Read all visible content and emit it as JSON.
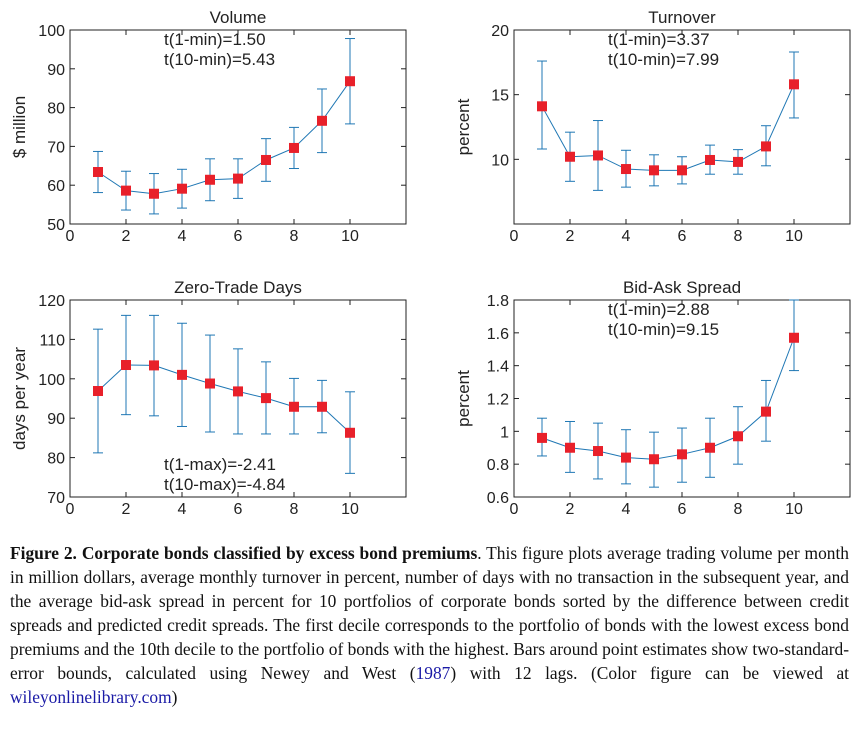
{
  "colors": {
    "line": "#1f77b4",
    "marker": "#e8202a",
    "axis": "#222222",
    "link": "#1a1aa6"
  },
  "chart_data": [
    {
      "type": "line",
      "title": "Volume",
      "xlabel": "",
      "ylabel": "$ million",
      "xlim": [
        0,
        12
      ],
      "ylim": [
        50,
        100
      ],
      "xticks": [
        0,
        2,
        4,
        6,
        8,
        10
      ],
      "yticks": [
        50,
        60,
        70,
        80,
        90,
        100
      ],
      "grid": false,
      "series": [
        {
          "x": [
            1,
            2,
            3,
            4,
            5,
            6,
            7,
            8,
            9,
            10
          ],
          "y": [
            63.4,
            58.6,
            57.8,
            59.1,
            61.4,
            61.7,
            66.5,
            69.6,
            76.6,
            86.8
          ],
          "err_low": [
            58.1,
            53.6,
            52.6,
            54.1,
            56.0,
            56.6,
            61.0,
            64.3,
            68.4,
            75.8
          ],
          "err_high": [
            68.7,
            63.6,
            63.0,
            64.1,
            66.8,
            66.8,
            72.0,
            74.9,
            84.8,
            97.8
          ]
        }
      ],
      "annotations": [
        "t(1-min)=1.50",
        "t(10-min)=5.43"
      ],
      "annotation_position": "top"
    },
    {
      "type": "line",
      "title": "Turnover",
      "xlabel": "",
      "ylabel": "percent",
      "xlim": [
        0,
        12
      ],
      "ylim": [
        5,
        20
      ],
      "xticks": [
        0,
        2,
        4,
        6,
        8,
        10
      ],
      "yticks": [
        10,
        15,
        20
      ],
      "grid": false,
      "series": [
        {
          "x": [
            1,
            2,
            3,
            4,
            5,
            6,
            7,
            8,
            9,
            10
          ],
          "y": [
            14.1,
            10.2,
            10.3,
            9.25,
            9.15,
            9.15,
            9.95,
            9.8,
            11.0,
            15.8
          ],
          "err_low": [
            10.8,
            8.3,
            7.6,
            7.85,
            7.95,
            8.1,
            8.85,
            8.85,
            9.5,
            13.2
          ],
          "err_high": [
            17.6,
            12.1,
            13.0,
            10.7,
            10.35,
            10.2,
            11.1,
            10.75,
            12.6,
            18.3
          ]
        }
      ],
      "annotations": [
        "t(1-min)=3.37",
        "t(10-min)=7.99"
      ],
      "annotation_position": "top"
    },
    {
      "type": "line",
      "title": "Zero-Trade Days",
      "xlabel": "",
      "ylabel": "days per year",
      "xlim": [
        0,
        12
      ],
      "ylim": [
        70,
        120
      ],
      "xticks": [
        0,
        2,
        4,
        6,
        8,
        10
      ],
      "yticks": [
        70,
        80,
        90,
        100,
        110,
        120
      ],
      "grid": false,
      "series": [
        {
          "x": [
            1,
            2,
            3,
            4,
            5,
            6,
            7,
            8,
            9,
            10
          ],
          "y": [
            96.9,
            103.5,
            103.4,
            101.0,
            98.8,
            96.8,
            95.1,
            92.9,
            92.9,
            86.3
          ],
          "err_low": [
            81.2,
            90.9,
            90.6,
            87.9,
            86.5,
            86.0,
            86.0,
            86.0,
            86.3,
            76.0
          ],
          "err_high": [
            112.6,
            116.1,
            116.1,
            114.1,
            111.1,
            107.6,
            104.3,
            100.1,
            99.6,
            96.7
          ]
        }
      ],
      "annotations": [
        "t(1-max)=-2.41",
        "t(10-max)=-4.84"
      ],
      "annotation_position": "bottom"
    },
    {
      "type": "line",
      "title": "Bid-Ask Spread",
      "xlabel": "",
      "ylabel": "percent",
      "xlim": [
        0,
        12
      ],
      "ylim": [
        0.6,
        1.8
      ],
      "xticks": [
        0,
        2,
        4,
        6,
        8,
        10
      ],
      "yticks": [
        0.6,
        0.8,
        1,
        1.2,
        1.4,
        1.6,
        1.8
      ],
      "grid": false,
      "series": [
        {
          "x": [
            1,
            2,
            3,
            4,
            5,
            6,
            7,
            8,
            9,
            10
          ],
          "y": [
            0.96,
            0.9,
            0.88,
            0.84,
            0.83,
            0.86,
            0.9,
            0.97,
            1.12,
            1.57
          ],
          "err_low": [
            0.85,
            0.75,
            0.71,
            0.68,
            0.66,
            0.69,
            0.72,
            0.8,
            0.94,
            1.37
          ],
          "err_high": [
            1.08,
            1.06,
            1.05,
            1.01,
            0.995,
            1.02,
            1.08,
            1.15,
            1.31,
            1.8
          ]
        }
      ],
      "annotations": [
        "t(1-min)=2.88",
        "t(10-min)=9.15"
      ],
      "annotation_position": "top"
    }
  ],
  "caption": {
    "lead": "Figure 2.  Corporate bonds classified by excess bond premiums",
    "body": ". This figure plots average trading volume per month in million dollars, average monthly turnover in percent, number of days with no transaction in the subsequent year, and the average bid-ask spread in percent for 10 portfolios of corporate bonds sorted by the difference between credit spreads and predicted credit spreads. The first decile corresponds to the portfolio of bonds with the lowest excess bond premiums and the 10th decile to the portfolio of bonds with the highest. Bars around point estimates show two-standard-error bounds, calculated using Newey and West (",
    "ref": "1987",
    "body2": ") with 12 lags. (Color figure can be viewed at ",
    "link": "wileyonlinelibrary.com",
    "end": ")"
  }
}
